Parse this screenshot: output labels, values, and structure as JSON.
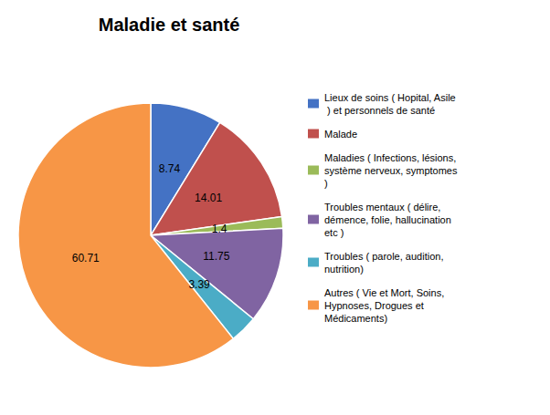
{
  "chart_data": {
    "type": "pie",
    "title": "Maladie et santé",
    "categories": [
      "Lieux de soins ( Hopital, Asile\n ) et personnels de santé",
      "Malade",
      "Maladies ( Infections, lésions,\nsystème nerveux, symptomes\n)",
      "Troubles mentaux ( délire,\ndémence, folie, hallucination\netc )",
      "Troubles ( parole, audition,\nnutrition)",
      "Autres ( Vie et Mort, Soins,\nHypnoses, Drogues et\nMédicaments)"
    ],
    "values": [
      8.74,
      14.01,
      1.4,
      11.75,
      3.39,
      60.71
    ],
    "colors": [
      "#4472C4",
      "#C0504D",
      "#9BBB59",
      "#8064A2",
      "#4BACC6",
      "#F79646"
    ],
    "data_labels": true,
    "legend": "right"
  }
}
